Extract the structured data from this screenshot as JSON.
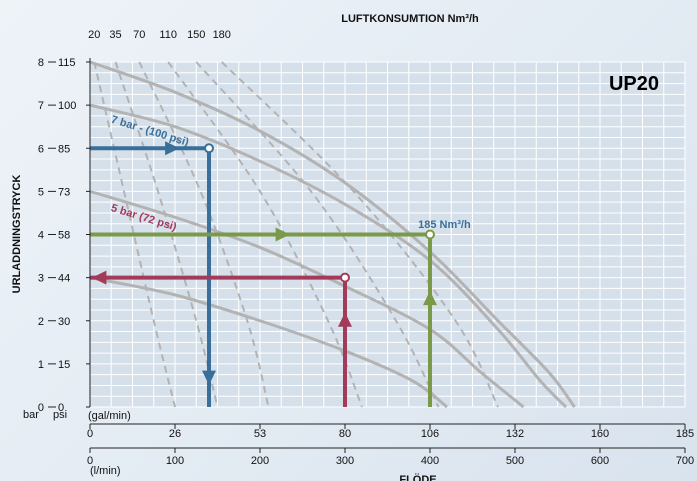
{
  "chart_data": {
    "type": "line",
    "title": "UP20",
    "top_axis_title": "LUFTKONSUMTION Nm³/h",
    "xlabel": "FLÖDE",
    "ylabel": "URLADDNINGSTRYCK",
    "bar_unit": "bar",
    "psi_unit": "psi",
    "gal_unit": "(gal/min)",
    "lmin_unit": "(l/min)",
    "xlim_lmin": [
      0,
      700
    ],
    "ylim_bar": [
      0,
      8
    ],
    "y_ticks_bar": [
      "0",
      "1",
      "2",
      "3",
      "4",
      "5",
      "6",
      "7",
      "8"
    ],
    "y_ticks_psi": [
      "0",
      "15",
      "30",
      "44",
      "58",
      "73",
      "85",
      "100",
      "115"
    ],
    "x_ticks_gal": [
      {
        "v": 0,
        "label": "0"
      },
      {
        "v": 100,
        "label": "26"
      },
      {
        "v": 200,
        "label": "53"
      },
      {
        "v": 300,
        "label": "80"
      },
      {
        "v": 400,
        "label": "106"
      },
      {
        "v": 500,
        "label": "132"
      },
      {
        "v": 600,
        "label": "160"
      },
      {
        "v": 700,
        "label": "185"
      }
    ],
    "x_ticks_lmin": [
      {
        "v": 0,
        "label": "0"
      },
      {
        "v": 100,
        "label": "100"
      },
      {
        "v": 200,
        "label": "200"
      },
      {
        "v": 300,
        "label": "300"
      },
      {
        "v": 400,
        "label": "400"
      },
      {
        "v": 500,
        "label": "500"
      },
      {
        "v": 600,
        "label": "600"
      },
      {
        "v": 700,
        "label": "700"
      }
    ],
    "top_ticks": [
      {
        "label": "20",
        "x": 5
      },
      {
        "label": "35",
        "x": 30
      },
      {
        "label": "70",
        "x": 58
      },
      {
        "label": "110",
        "x": 92
      },
      {
        "label": "150",
        "x": 125
      },
      {
        "label": "180",
        "x": 155
      }
    ],
    "pressure_curves": [
      {
        "name": "8 bar",
        "points": [
          [
            0,
            8
          ],
          [
            100,
            7.3
          ],
          [
            200,
            6.4
          ],
          [
            300,
            5.2
          ],
          [
            400,
            3.6
          ],
          [
            480,
            2
          ],
          [
            540,
            0.8
          ],
          [
            570,
            0
          ]
        ]
      },
      {
        "name": "7 bar",
        "points": [
          [
            0,
            7
          ],
          [
            100,
            6.5
          ],
          [
            200,
            5.7
          ],
          [
            300,
            4.7
          ],
          [
            400,
            3.4
          ],
          [
            480,
            1.8
          ],
          [
            530,
            0.6
          ],
          [
            560,
            0
          ]
        ]
      },
      {
        "name": "5 bar",
        "points": [
          [
            0,
            5
          ],
          [
            100,
            4.4
          ],
          [
            200,
            3.7
          ],
          [
            300,
            2.8
          ],
          [
            400,
            1.8
          ],
          [
            460,
            0.8
          ],
          [
            510,
            0
          ]
        ]
      },
      {
        "name": "3 bar",
        "points": [
          [
            0,
            3
          ],
          [
            100,
            2.6
          ],
          [
            200,
            2
          ],
          [
            300,
            1.3
          ],
          [
            380,
            0.6
          ],
          [
            420,
            0
          ]
        ]
      }
    ],
    "air_curves": [
      {
        "label": "20",
        "points": [
          [
            5,
            8
          ],
          [
            40,
            5
          ],
          [
            75,
            2
          ],
          [
            100,
            0
          ]
        ]
      },
      {
        "label": "35",
        "points": [
          [
            30,
            8
          ],
          [
            80,
            5
          ],
          [
            125,
            2
          ],
          [
            150,
            0
          ]
        ]
      },
      {
        "label": "70",
        "points": [
          [
            58,
            8
          ],
          [
            130,
            5
          ],
          [
            185,
            2
          ],
          [
            210,
            0
          ]
        ]
      },
      {
        "label": "110",
        "points": [
          [
            92,
            8
          ],
          [
            200,
            5
          ],
          [
            280,
            2
          ],
          [
            320,
            0
          ]
        ]
      },
      {
        "label": "150",
        "points": [
          [
            125,
            8
          ],
          [
            260,
            5
          ],
          [
            360,
            2
          ],
          [
            410,
            0
          ]
        ]
      },
      {
        "label": "180",
        "points": [
          [
            155,
            8
          ],
          [
            310,
            5
          ],
          [
            430,
            2
          ],
          [
            480,
            0
          ]
        ]
      }
    ],
    "annotations": [
      {
        "text": "7 bar - (100 psi)",
        "x": 24,
        "y": 6.6,
        "color": "#3a6f9a",
        "rotate": 17
      },
      {
        "text": "5 bar (72 psi)",
        "x": 24,
        "y": 4.55,
        "color": "#a33a5a",
        "rotate": 17
      },
      {
        "text": "185 Nm³/h",
        "x": 386,
        "y": 4.15,
        "color": "#3a6f9a",
        "rotate": 0
      }
    ],
    "operating_points": [
      {
        "name": "blue",
        "color": "#3a6f9a",
        "x": 140,
        "y": 6,
        "h_dir": "right",
        "v_dir": "down"
      },
      {
        "name": "red",
        "color": "#a33a5a",
        "x": 300,
        "y": 3,
        "h_dir": "left",
        "v_dir": "up"
      },
      {
        "name": "green",
        "color": "#7a9a4a",
        "x": 400,
        "y": 4,
        "h_dir": "right",
        "v_dir": "up"
      }
    ],
    "colors": {
      "grid": "#ffffff",
      "plot_bg": "#d6e0eb",
      "curve": "#b3b3b3",
      "dashed": "#b3b3b3",
      "axis_text": "#111111"
    }
  }
}
